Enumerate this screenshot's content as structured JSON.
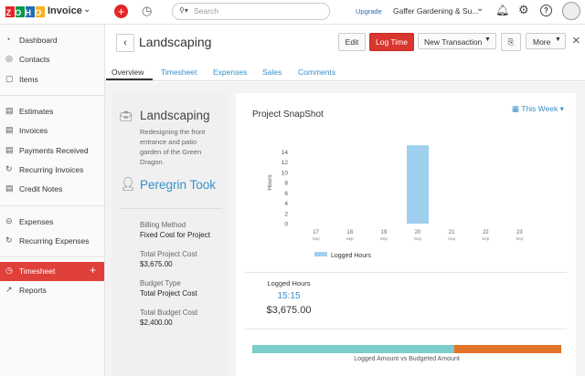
{
  "top_bar": {
    "logo": "ZOHO",
    "app_name": "Invoice",
    "search_placeholder": "Search",
    "upgrade": "Upgrade",
    "organization": "Gaffer Gardening & Su..."
  },
  "sidebar": {
    "items": [
      "Dashboard",
      "Contacts",
      "Items",
      "Estimates",
      "Invoices",
      "Payments Received",
      "Recurring Invoices",
      "Credit Notes",
      "Expenses",
      "Recurring Expenses",
      "Timesheet",
      "Reports"
    ],
    "active": "Timesheet"
  },
  "header": {
    "title": "Landscaping",
    "buttons": [
      "Edit",
      "Log Time",
      "New Transaction",
      "More"
    ]
  },
  "tabs": [
    "Overview",
    "Timesheet",
    "Expenses",
    "Sales",
    "Comments"
  ],
  "project": {
    "name": "Landscaping",
    "description": [
      "Redesigning the front",
      "entrance and patio",
      "garden of the Green",
      "Dragon."
    ],
    "customer": "Peregrin Took",
    "fields": [
      {
        "label": "Billing Method",
        "value": "Fixed Cost for Project"
      },
      {
        "label": "Total Project Cost",
        "value": "$3,675.00"
      },
      {
        "label": "Budget Type",
        "value": "Total Project Cost"
      },
      {
        "label": "Total Budget Cost",
        "value": "$2,400.00"
      }
    ]
  },
  "snapshot": {
    "title": "Project SnapShot",
    "period": "This Week"
  },
  "chart_data": {
    "type": "bar",
    "y_label": "Hours",
    "categories": [
      [
        "17",
        "Sep"
      ],
      [
        "18",
        "Sep"
      ],
      [
        "19",
        "Sep"
      ],
      [
        "20",
        "Sep"
      ],
      [
        "21",
        "Sep"
      ],
      [
        "22",
        "Sep"
      ],
      [
        "23",
        "Sep"
      ]
    ],
    "series": [
      {
        "name": "Logged Hours",
        "color": "#9fcfee",
        "values": [
          0,
          0,
          0,
          15.25,
          0,
          0,
          0
        ]
      }
    ],
    "ylim": [
      0,
      16
    ],
    "yticks": [
      0,
      2,
      4,
      6,
      8,
      10,
      12,
      14
    ],
    "grid": false
  },
  "summary": {
    "label": "Logged Hours",
    "hours": "15:15",
    "amount": "$3,675.00"
  },
  "progress": {
    "caption": "Logged Amount vs Budgeted Amount",
    "logged": 3675,
    "budgeted": 2400,
    "budget_color": "#7dcccc",
    "over_color": "#e07328"
  }
}
